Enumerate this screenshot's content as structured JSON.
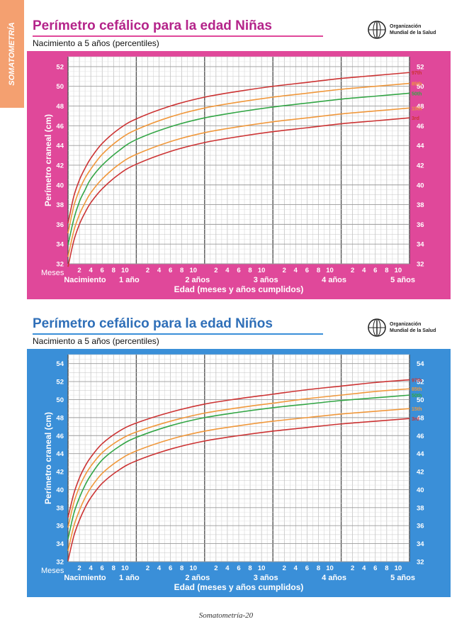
{
  "side_tab": "SOMATOMETRÍA",
  "footer": "Somatometría-20",
  "who_logo_text": "Organización\nMundial de la Salud",
  "chart_data": [
    {
      "type": "line",
      "title": "Perímetro cefálico para la edad Niñas",
      "subtitle": "Nacimiento a 5 años (percentiles)",
      "ylabel": "Perímetro craneal (cm)",
      "xlabel": "Edad (meses y años cumplidos)",
      "x_months_label": "Meses",
      "year_labels": [
        "Nacimiento",
        "1 año",
        "2 años",
        "3 años",
        "4 años",
        "5 años"
      ],
      "month_ticks": [
        "2",
        "4",
        "6",
        "8",
        "10"
      ],
      "xlim": [
        0,
        60
      ],
      "ylim": [
        32,
        53
      ],
      "yticks": [
        32,
        34,
        36,
        38,
        40,
        42,
        44,
        46,
        48,
        50,
        52
      ],
      "accent_color": "#e0489a",
      "title_color": "#b4248a",
      "series": [
        {
          "name": "97th",
          "color": "#cc3333",
          "x": [
            0,
            1,
            2,
            3,
            4,
            6,
            9,
            12,
            18,
            24,
            30,
            36,
            42,
            48,
            54,
            60
          ],
          "y": [
            36.1,
            38.8,
            40.5,
            41.7,
            42.7,
            44.2,
            45.7,
            46.7,
            48.0,
            48.9,
            49.5,
            50.0,
            50.4,
            50.8,
            51.1,
            51.4
          ]
        },
        {
          "name": "85th",
          "color": "#f0983c",
          "x": [
            0,
            1,
            2,
            3,
            4,
            6,
            9,
            12,
            18,
            24,
            30,
            36,
            42,
            48,
            54,
            60
          ],
          "y": [
            35.1,
            37.8,
            39.5,
            40.7,
            41.6,
            43.1,
            44.6,
            45.6,
            46.9,
            47.8,
            48.4,
            48.9,
            49.3,
            49.7,
            50.0,
            50.3
          ]
        },
        {
          "name": "50th",
          "color": "#33a646",
          "x": [
            0,
            1,
            2,
            3,
            4,
            6,
            9,
            12,
            18,
            24,
            30,
            36,
            42,
            48,
            54,
            60
          ],
          "y": [
            33.9,
            36.5,
            38.3,
            39.5,
            40.6,
            42.0,
            43.5,
            44.6,
            45.9,
            46.8,
            47.4,
            47.9,
            48.3,
            48.7,
            49.0,
            49.3
          ]
        },
        {
          "name": "15th",
          "color": "#f0983c",
          "x": [
            0,
            1,
            2,
            3,
            4,
            6,
            9,
            12,
            18,
            24,
            30,
            36,
            42,
            48,
            54,
            60
          ],
          "y": [
            32.7,
            35.3,
            37.0,
            38.2,
            39.2,
            40.6,
            42.1,
            43.1,
            44.4,
            45.3,
            45.9,
            46.4,
            46.8,
            47.2,
            47.5,
            47.8
          ]
        },
        {
          "name": "3rd",
          "color": "#cc3333",
          "x": [
            0,
            1,
            2,
            3,
            4,
            6,
            9,
            12,
            18,
            24,
            30,
            36,
            42,
            48,
            54,
            60
          ],
          "y": [
            31.7,
            34.3,
            36.0,
            37.2,
            38.2,
            39.6,
            41.1,
            42.1,
            43.4,
            44.3,
            44.9,
            45.4,
            45.8,
            46.2,
            46.5,
            46.8
          ]
        }
      ]
    },
    {
      "type": "line",
      "title": "Perímetro cefálico para la edad Niños",
      "subtitle": "Nacimiento a 5 años (percentiles)",
      "ylabel": "Perímetro craneal (cm)",
      "xlabel": "Edad (meses y años cumplidos)",
      "x_months_label": "Meses",
      "year_labels": [
        "Nacimiento",
        "1 año",
        "2 años",
        "3 años",
        "4 años",
        "5 años"
      ],
      "month_ticks": [
        "2",
        "4",
        "6",
        "8",
        "10"
      ],
      "xlim": [
        0,
        60
      ],
      "ylim": [
        32,
        55
      ],
      "yticks": [
        32,
        34,
        36,
        38,
        40,
        42,
        44,
        46,
        48,
        50,
        52,
        54
      ],
      "accent_color": "#3a8fd8",
      "title_color": "#2f6fb8",
      "series": [
        {
          "name": "97th",
          "color": "#cc3333",
          "x": [
            0,
            1,
            2,
            3,
            4,
            6,
            9,
            12,
            18,
            24,
            30,
            36,
            42,
            48,
            54,
            60
          ],
          "y": [
            36.9,
            39.5,
            41.3,
            42.6,
            43.6,
            45.1,
            46.5,
            47.4,
            48.6,
            49.5,
            50.1,
            50.6,
            51.1,
            51.5,
            51.9,
            52.2
          ]
        },
        {
          "name": "85th",
          "color": "#f0983c",
          "x": [
            0,
            1,
            2,
            3,
            4,
            6,
            9,
            12,
            18,
            24,
            30,
            36,
            42,
            48,
            54,
            60
          ],
          "y": [
            35.8,
            38.5,
            40.3,
            41.6,
            42.6,
            44.1,
            45.5,
            46.4,
            47.6,
            48.5,
            49.1,
            49.6,
            50.1,
            50.5,
            50.9,
            51.2
          ]
        },
        {
          "name": "50th",
          "color": "#33a646",
          "x": [
            0,
            1,
            2,
            3,
            4,
            6,
            9,
            12,
            18,
            24,
            30,
            36,
            42,
            48,
            54,
            60
          ],
          "y": [
            34.5,
            37.3,
            39.1,
            40.5,
            41.6,
            43.3,
            44.8,
            45.8,
            47.1,
            48.0,
            48.6,
            49.1,
            49.5,
            49.9,
            50.2,
            50.5
          ]
        },
        {
          "name": "15th",
          "color": "#f0983c",
          "x": [
            0,
            1,
            2,
            3,
            4,
            6,
            9,
            12,
            18,
            24,
            30,
            36,
            42,
            48,
            54,
            60
          ],
          "y": [
            33.2,
            35.9,
            37.7,
            39.1,
            40.2,
            41.8,
            43.3,
            44.3,
            45.6,
            46.5,
            47.1,
            47.6,
            48.0,
            48.4,
            48.7,
            49.0
          ]
        },
        {
          "name": "3rd",
          "color": "#cc3333",
          "x": [
            0,
            1,
            2,
            3,
            4,
            6,
            9,
            12,
            18,
            24,
            30,
            36,
            42,
            48,
            54,
            60
          ],
          "y": [
            32.1,
            34.8,
            36.6,
            38.0,
            39.1,
            40.7,
            42.2,
            43.2,
            44.5,
            45.4,
            46.0,
            46.5,
            46.9,
            47.3,
            47.6,
            47.9
          ]
        }
      ]
    }
  ]
}
